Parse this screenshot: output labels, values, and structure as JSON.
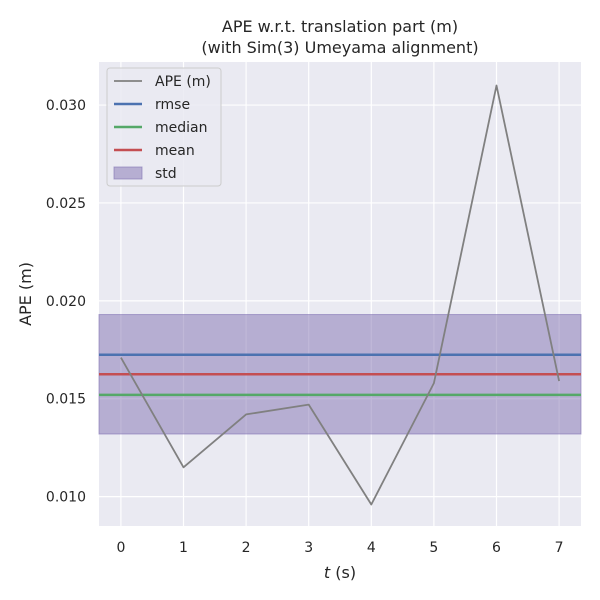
{
  "chart_data": {
    "type": "line",
    "title_line1": "APE w.r.t. translation part (m)",
    "title_line2": "(with Sim(3) Umeyama alignment)",
    "xlabel_var": "t",
    "xlabel_unit": " (s)",
    "ylabel": "APE (m)",
    "x_ticks": [
      "0",
      "1",
      "2",
      "3",
      "4",
      "5",
      "6",
      "7"
    ],
    "y_ticks": [
      "0.010",
      "0.015",
      "0.020",
      "0.025",
      "0.030"
    ],
    "xlim": [
      -0.35,
      7.35
    ],
    "ylim": [
      0.0085,
      0.0322
    ],
    "grid": true,
    "legend_position": "top-left",
    "series": [
      {
        "name": "APE (m)",
        "color": "#808080",
        "x": [
          0,
          1,
          2,
          3,
          4,
          5,
          6,
          7
        ],
        "y": [
          0.0171,
          0.0115,
          0.0142,
          0.0147,
          0.0096,
          0.0158,
          0.031,
          0.0159
        ]
      }
    ],
    "statistics": [
      {
        "name": "rmse",
        "value": 0.01725,
        "color": "#4c72b0"
      },
      {
        "name": "median",
        "value": 0.0152,
        "color": "#55a868"
      },
      {
        "name": "mean",
        "value": 0.01625,
        "color": "#c44e52"
      }
    ],
    "std_band": {
      "name": "std",
      "lower": 0.0132,
      "upper": 0.0193,
      "color": "#8172b2"
    },
    "colors": {
      "background": "#eaeaf2",
      "grid": "#ffffff",
      "text": "#262626"
    }
  }
}
